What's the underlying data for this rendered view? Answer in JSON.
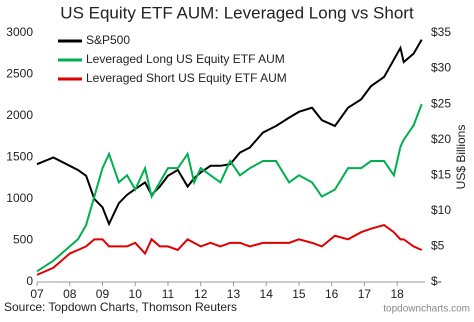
{
  "chart_data": {
    "type": "line",
    "title": "US Equity ETF AUM: Leveraged Long vs Short",
    "y2_label": "US$ Billions",
    "source": "Source: Topdown Charts, Thomson Reuters",
    "watermark": "topdowncharts.com",
    "x": [
      7,
      7.5,
      8,
      8.25,
      8.5,
      8.75,
      9,
      9.2,
      9.5,
      9.75,
      10,
      10.3,
      10.5,
      10.75,
      11,
      11.3,
      11.6,
      11.8,
      12,
      12.3,
      12.6,
      12.9,
      13.2,
      13.5,
      13.9,
      14.3,
      14.7,
      15,
      15.4,
      15.7,
      16.1,
      16.5,
      16.9,
      17.2,
      17.6,
      17.9,
      18.1,
      18.2,
      18.5,
      18.75
    ],
    "series": [
      {
        "name": "S&P500",
        "color": "#000000",
        "axis": "y",
        "values": [
          1420,
          1500,
          1400,
          1350,
          1280,
          1000,
          900,
          700,
          950,
          1050,
          1120,
          1200,
          1050,
          1150,
          1280,
          1350,
          1150,
          1250,
          1320,
          1400,
          1400,
          1420,
          1560,
          1620,
          1800,
          1880,
          1980,
          2050,
          2100,
          1950,
          1880,
          2100,
          2200,
          2360,
          2470,
          2680,
          2820,
          2650,
          2750,
          2920
        ]
      },
      {
        "name": "Leveraged Long US Equity ETF AUM",
        "color": "#00b050",
        "axis": "y2",
        "values": [
          1.5,
          3,
          5,
          6,
          8,
          12,
          16,
          18,
          14,
          15,
          13,
          16,
          12,
          14,
          16,
          16,
          18,
          14,
          16,
          15,
          14,
          17,
          15,
          16,
          17,
          17,
          14,
          15,
          14,
          12,
          13,
          16,
          16,
          17,
          17,
          15,
          19,
          20,
          22,
          25
        ]
      },
      {
        "name": "Leveraged Short US Equity ETF AUM",
        "color": "#e00000",
        "axis": "y2",
        "values": [
          1,
          2,
          4,
          4.5,
          5,
          6,
          6,
          5,
          5,
          5,
          5.5,
          4,
          6,
          5,
          5,
          4.5,
          6,
          5.5,
          5,
          5.5,
          5,
          5.5,
          5.5,
          5,
          5.5,
          5.5,
          5.5,
          6,
          5.5,
          5,
          6.5,
          6,
          7,
          7.5,
          8,
          7,
          6,
          6,
          5,
          4.5
        ]
      }
    ],
    "xlim": [
      7,
      18.85
    ],
    "xticks": [
      {
        "value": 7,
        "label": "07"
      },
      {
        "value": 8,
        "label": "08"
      },
      {
        "value": 9,
        "label": "09"
      },
      10,
      11,
      12,
      13,
      14,
      15,
      16,
      17,
      18
    ],
    "ylim": [
      0,
      3000
    ],
    "yticks": [
      0,
      500,
      1000,
      1500,
      2000,
      2500,
      3000
    ],
    "y2lim": [
      0,
      35
    ],
    "y2ticks": [
      {
        "value": 0,
        "label": "$-"
      },
      {
        "value": 5,
        "label": "$5"
      },
      {
        "value": 10,
        "label": "$10"
      },
      {
        "value": 15,
        "label": "$15"
      },
      {
        "value": 20,
        "label": "$20"
      },
      {
        "value": 25,
        "label": "$25"
      },
      {
        "value": 30,
        "label": "$30"
      },
      {
        "value": 35,
        "label": "$35"
      }
    ],
    "legend": "top-left"
  }
}
